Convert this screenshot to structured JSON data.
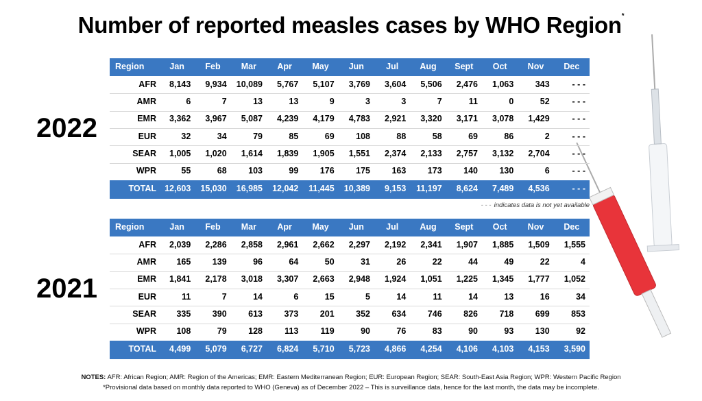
{
  "title": "Number of reported measles cases by WHO Region",
  "title_mark": "*",
  "tables": [
    {
      "year": "2022",
      "header": [
        "Region",
        "Jan",
        "Feb",
        "Mar",
        "Apr",
        "May",
        "Jun",
        "Jul",
        "Aug",
        "Sept",
        "Oct",
        "Nov",
        "Dec"
      ],
      "rows": [
        [
          "AFR",
          "8,143",
          "9,934",
          "10,089",
          "5,767",
          "5,107",
          "3,769",
          "3,604",
          "5,506",
          "2,476",
          "1,063",
          "343",
          "- - -"
        ],
        [
          "AMR",
          "6",
          "7",
          "13",
          "13",
          "9",
          "3",
          "3",
          "7",
          "11",
          "0",
          "52",
          "- - -"
        ],
        [
          "EMR",
          "3,362",
          "3,967",
          "5,087",
          "4,239",
          "4,179",
          "4,783",
          "2,921",
          "3,320",
          "3,171",
          "3,078",
          "1,429",
          "- - -"
        ],
        [
          "EUR",
          "32",
          "34",
          "79",
          "85",
          "69",
          "108",
          "88",
          "58",
          "69",
          "86",
          "2",
          "- - -"
        ],
        [
          "SEAR",
          "1,005",
          "1,020",
          "1,614",
          "1,839",
          "1,905",
          "1,551",
          "2,374",
          "2,133",
          "2,757",
          "3,132",
          "2,704",
          "- - -"
        ],
        [
          "WPR",
          "55",
          "68",
          "103",
          "99",
          "176",
          "175",
          "163",
          "173",
          "140",
          "130",
          "6",
          "- - -"
        ]
      ],
      "total": [
        "TOTAL",
        "12,603",
        "15,030",
        "16,985",
        "12,042",
        "11,445",
        "10,389",
        "9,153",
        "11,197",
        "8,624",
        "7,489",
        "4,536",
        "- - -"
      ],
      "note_dash": "- - -",
      "note": "indicates data is not yet available"
    },
    {
      "year": "2021",
      "header": [
        "Region",
        "Jan",
        "Feb",
        "Mar",
        "Apr",
        "May",
        "Jun",
        "Jul",
        "Aug",
        "Sept",
        "Oct",
        "Nov",
        "Dec"
      ],
      "rows": [
        [
          "AFR",
          "2,039",
          "2,286",
          "2,858",
          "2,961",
          "2,662",
          "2,297",
          "2,192",
          "2,341",
          "1,907",
          "1,885",
          "1,509",
          "1,555"
        ],
        [
          "AMR",
          "165",
          "139",
          "96",
          "64",
          "50",
          "31",
          "26",
          "22",
          "44",
          "49",
          "22",
          "4"
        ],
        [
          "EMR",
          "1,841",
          "2,178",
          "3,018",
          "3,307",
          "2,663",
          "2,948",
          "1,924",
          "1,051",
          "1,225",
          "1,345",
          "1,777",
          "1,052"
        ],
        [
          "EUR",
          "11",
          "7",
          "14",
          "6",
          "15",
          "5",
          "14",
          "11",
          "14",
          "13",
          "16",
          "34"
        ],
        [
          "SEAR",
          "335",
          "390",
          "613",
          "373",
          "201",
          "352",
          "634",
          "746",
          "826",
          "718",
          "699",
          "853"
        ],
        [
          "WPR",
          "108",
          "79",
          "128",
          "113",
          "119",
          "90",
          "76",
          "83",
          "90",
          "93",
          "130",
          "92"
        ]
      ],
      "total": [
        "TOTAL",
        "4,499",
        "5,079",
        "6,727",
        "6,824",
        "5,710",
        "5,723",
        "4,866",
        "4,254",
        "4,106",
        "4,103",
        "4,153",
        "3,590"
      ]
    }
  ],
  "notes": {
    "label": "NOTES:",
    "line1": "AFR: African Region; AMR: Region of the Americas; EMR: Eastern Mediterranean Region; EUR: European Region; SEAR: South-East Asia Region; WPR: Western Pacific Region",
    "line2": "*Provisional data based on monthly data reported to WHO (Geneva) as of December 2022 – This is surveillance data, hence for the last month, the data may be incomplete."
  }
}
